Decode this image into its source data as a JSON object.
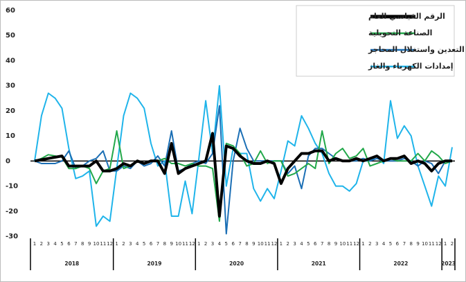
{
  "chart_data": {
    "type": "line",
    "categories": [
      "1",
      "2",
      "3",
      "4",
      "5",
      "6",
      "7",
      "8",
      "9",
      "10",
      "11",
      "12",
      "1",
      "2",
      "3",
      "4",
      "5",
      "6",
      "7",
      "8",
      "9",
      "10",
      "11",
      "12",
      "1",
      "2",
      "3",
      "4",
      "5",
      "6",
      "7",
      "8",
      "9",
      "10",
      "11",
      "12",
      "1",
      "2",
      "3",
      "4",
      "5",
      "6",
      "7",
      "8",
      "9",
      "10",
      "11",
      "12",
      "1",
      "2",
      "3",
      "4",
      "5",
      "6",
      "7",
      "8",
      "9",
      "10",
      "11",
      "12",
      "1",
      "2"
    ],
    "years": [
      "2018",
      "2019",
      "2020",
      "2021",
      "2022",
      "2023"
    ],
    "ylim": [
      -30,
      60
    ],
    "yticks": [
      -30,
      -20,
      -10,
      0,
      10,
      20,
      30,
      40,
      50,
      60
    ],
    "series": [
      {
        "name": "الرقم القياسي العام",
        "color": "#000000",
        "values": [
          0,
          0.5,
          1,
          1.5,
          2,
          -2,
          -2,
          -2,
          -2,
          0,
          -4,
          -4,
          -3,
          -1,
          -2,
          0,
          -1,
          0,
          0,
          -5,
          7,
          -5,
          -3,
          -2,
          -1,
          0,
          11,
          -22,
          6,
          5,
          2,
          0,
          -1,
          -1,
          0,
          -1,
          -9,
          -3,
          0,
          3,
          3,
          4,
          4,
          0,
          1,
          0,
          0,
          1,
          0,
          1,
          2,
          0,
          1,
          1,
          2,
          -1,
          0,
          -1,
          -4,
          -1,
          0,
          0
        ]
      },
      {
        "name": "الصناعة التحويلية",
        "color": "#22a84a",
        "values": [
          0,
          1,
          2.5,
          2,
          1.5,
          -3,
          -3,
          -2,
          -3,
          -9,
          -4,
          -3,
          12,
          -3,
          -2,
          0,
          -1,
          0,
          0,
          1,
          -1,
          -1,
          -2,
          -1,
          -2,
          -2,
          -3,
          -24,
          7,
          6,
          3,
          -2,
          -1,
          4,
          -1,
          0,
          0,
          -6,
          -5,
          -3,
          -1,
          -3,
          12,
          -1,
          3,
          5,
          1,
          2,
          5,
          -2,
          -1,
          0,
          1,
          0,
          0,
          0,
          3,
          0,
          4,
          2,
          -1,
          0
        ]
      },
      {
        "name": "التعدين واستغلال المحاجر",
        "color": "#1b6fb5",
        "values": [
          0,
          -1,
          -1,
          -1,
          0,
          4,
          -3,
          -2,
          0,
          1,
          4,
          -4,
          -4,
          -2,
          -3,
          0,
          -2,
          -1,
          2,
          -2,
          12,
          -4,
          -3,
          -1,
          0,
          -1,
          3,
          22,
          -29,
          0,
          13,
          5,
          0,
          0,
          0,
          0,
          0,
          -5,
          -2,
          -11,
          2,
          5,
          5,
          3,
          1,
          0,
          0,
          0,
          1,
          0,
          1,
          0,
          0,
          0,
          1,
          0,
          -2,
          0,
          -1,
          -5,
          0,
          0
        ]
      },
      {
        "name": "إمدادات الكهرباء والغاز",
        "color": "#1fb4ea",
        "values": [
          0,
          18,
          27,
          25,
          21,
          5,
          -7,
          -6,
          -4,
          -26,
          -22,
          -24,
          -3,
          18,
          27,
          25,
          21,
          7,
          -2,
          0,
          -22,
          -22,
          -8,
          -21,
          1,
          24,
          3,
          30,
          -10,
          5,
          3,
          3,
          -11,
          -16,
          -11,
          -15,
          -4,
          8,
          6,
          18,
          13,
          7,
          3,
          -5,
          -10,
          -10,
          -12,
          -9,
          0,
          0,
          2,
          -1,
          24,
          9,
          14,
          10,
          -2,
          -10,
          -18,
          -6,
          -10,
          5.5
        ]
      }
    ]
  }
}
